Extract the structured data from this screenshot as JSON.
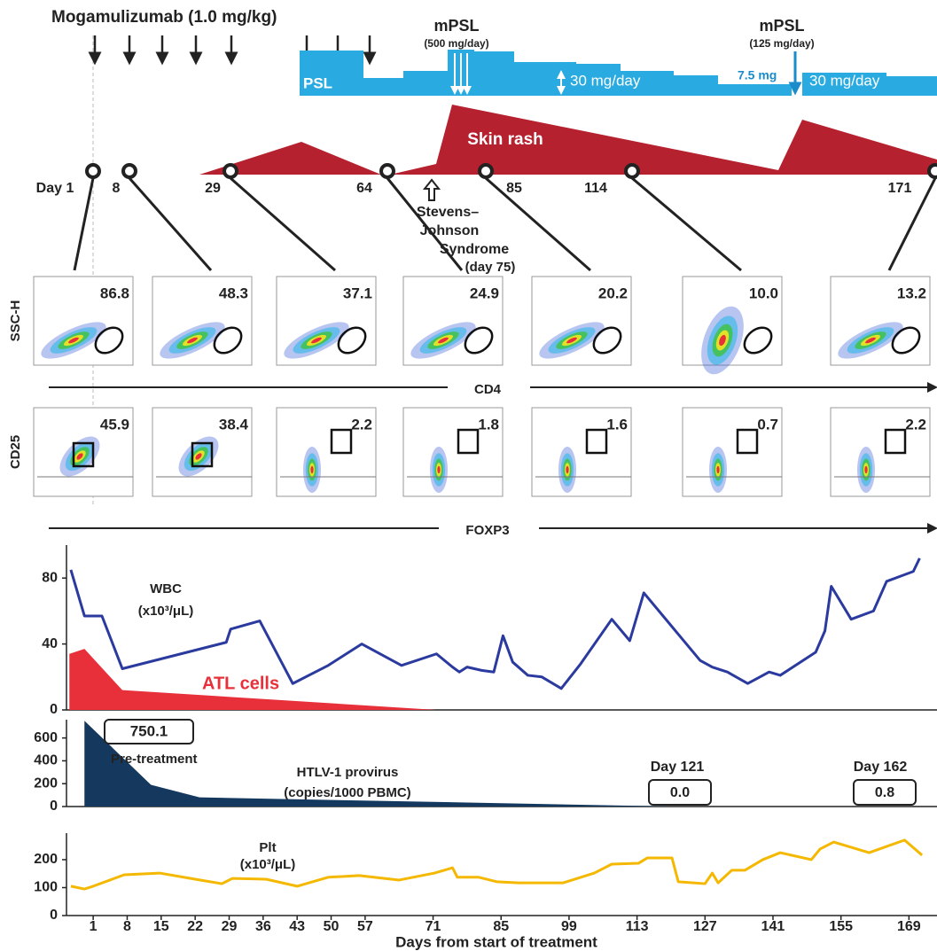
{
  "timeline": {
    "drug": "Mogamulizumab (1.0 mg/kg)",
    "mpsl_1": {
      "label": "mPSL",
      "dose": "(500 mg/day)"
    },
    "mpsl_2": {
      "label": "mPSL",
      "dose": "(125 mg/day)"
    },
    "psl": "PSL",
    "psl_doses": [
      "30 mg/day",
      "7.5 mg",
      "30 mg/day"
    ],
    "skin_rash": "Skin rash",
    "sjs": [
      "Stevens–",
      "Johnson",
      "Syndrome",
      "(day 75)"
    ],
    "sample_days": [
      "Day 1",
      "8",
      "29",
      "64",
      "85",
      "114",
      "171"
    ]
  },
  "flow": {
    "cd4_row": {
      "y_label": "SSC-H",
      "x_label": "CD4",
      "values": [
        "86.8",
        "48.3",
        "37.1",
        "24.9",
        "20.2",
        "10.0",
        "13.2"
      ]
    },
    "foxp3_row": {
      "y_label": "CD25",
      "x_label": "FOXP3",
      "values": [
        "45.9",
        "38.4",
        "2.2",
        "1.8",
        "1.6",
        "0.7",
        "2.2"
      ]
    }
  },
  "chart_data": [
    {
      "type": "line",
      "xlim": [
        -4.5,
        173.5
      ],
      "ylim": [
        0,
        100
      ],
      "yticks": [
        0,
        40,
        80
      ],
      "series": [
        {
          "name": "WBC",
          "unit": "(x10³/μL)",
          "style": "line",
          "color": "#2b3a9e",
          "x": [
            -3.6,
            -0.8,
            2.8,
            7.0,
            28.4,
            29.3,
            35.3,
            42.1,
            49.4,
            56.3,
            64.5,
            71.7,
            75,
            76.4,
            78,
            81,
            83.5,
            85.4,
            87.4,
            90.5,
            93.4,
            97.4,
            101.4,
            107.8,
            111.5,
            114.4,
            126,
            128.5,
            131.6,
            135.8,
            140.2,
            142.5,
            149.8,
            151.7,
            153,
            157.1,
            161.7,
            164.4,
            169.9,
            171.2
          ],
          "values": [
            85,
            57,
            57,
            25,
            41,
            49,
            54,
            16,
            27,
            40,
            27,
            34,
            26,
            23,
            26,
            24,
            23,
            45,
            29,
            21,
            20,
            13,
            28,
            55,
            42,
            71,
            30,
            26,
            23,
            16,
            23,
            21,
            35,
            48,
            75,
            55,
            60,
            78,
            84,
            92
          ]
        },
        {
          "name": "ATL cells",
          "style": "area",
          "color": "#e8303a",
          "x": [
            -3.9,
            -0.8,
            7.0,
            71.7
          ],
          "values": [
            34,
            37,
            12,
            0
          ]
        }
      ]
    },
    {
      "type": "line",
      "xlim": [
        -4.5,
        173.5
      ],
      "ylim": [
        0,
        760
      ],
      "yticks": [
        0,
        200,
        400,
        600
      ],
      "series": [
        {
          "name": "HTLV-1 provirus",
          "unit": "(copies/1000 PBMC)",
          "style": "area",
          "color": "#14385e",
          "x": [
            -0.8,
            12.9,
            22.9,
            120.6
          ],
          "values": [
            750.1,
            190,
            80,
            0
          ]
        }
      ],
      "annotations": [
        "Pre-treatment",
        "Day 121",
        "0.0",
        "Day 162",
        "0.8"
      ]
    },
    {
      "type": "line",
      "xlim": [
        -4.5,
        173.5
      ],
      "ylim": [
        0,
        295
      ],
      "yticks": [
        0,
        100,
        200
      ],
      "xticks": [
        1,
        8,
        15,
        22,
        29,
        36,
        43,
        50,
        57,
        71,
        85,
        99,
        113,
        127,
        141,
        155,
        169
      ],
      "xlabel": "Days from start of treatment",
      "series": [
        {
          "name": "Plt",
          "unit": "(x10³/μL)",
          "style": "line",
          "color": "#f5b800",
          "x": [
            -3.6,
            -0.8,
            1,
            7.4,
            14.7,
            22,
            27.5,
            29.7,
            36.6,
            43,
            49.4,
            55.8,
            64,
            71.3,
            75,
            76,
            80.4,
            84.1,
            88.7,
            91.4,
            97.8,
            104.2,
            107.8,
            113.3,
            115.1,
            120.2,
            121.5,
            127,
            128.5,
            129.7,
            132.5,
            135.2,
            138.9,
            142.5,
            148.9,
            150.7,
            153.5,
            160.8,
            168.1,
            171.7
          ],
          "values": [
            105,
            95,
            105,
            146,
            152,
            130,
            114,
            133,
            130,
            105,
            137,
            143,
            127,
            152,
            171,
            137,
            137,
            121,
            117,
            117,
            117,
            152,
            184,
            187,
            206,
            206,
            121,
            114,
            152,
            117,
            162,
            162,
            200,
            225,
            200,
            238,
            263,
            225,
            270,
            216
          ]
        }
      ]
    }
  ]
}
